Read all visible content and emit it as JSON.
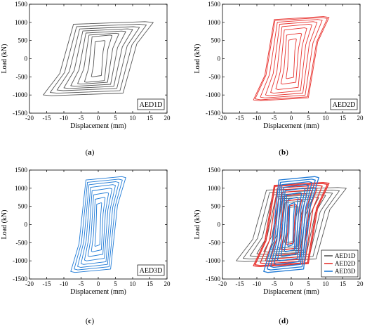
{
  "colors": {
    "AED1D": "#555555",
    "AED2D": "#e8332f",
    "AED3D": "#1f7ad6"
  },
  "captions": [
    "a",
    "b",
    "c",
    "d"
  ],
  "chart_data": [
    {
      "type": "line",
      "panel": "a",
      "xlabel": "Displacement (mm)",
      "ylabel": "Load (kN)",
      "xlim": [
        -20,
        20
      ],
      "ylim": [
        -1500,
        1500
      ],
      "xticks": [
        -20,
        -15,
        -10,
        -5,
        0,
        5,
        10,
        15,
        20
      ],
      "yticks": [
        -1500,
        -1000,
        -500,
        0,
        500,
        1000,
        1500
      ],
      "label_box": "AED1D",
      "label_position": "bottom-right",
      "series": [
        {
          "specimen": "AED1D",
          "loops": [
            [
              2,
              500
            ],
            [
              4,
              650
            ],
            [
              6,
              700
            ],
            [
              8,
              760
            ],
            [
              10,
              820
            ],
            [
              12,
              880
            ],
            [
              14,
              950
            ],
            [
              16,
              1020
            ]
          ]
        }
      ]
    },
    {
      "type": "line",
      "panel": "b",
      "xlabel": "Displacement (mm)",
      "ylabel": "Load (kN)",
      "xlim": [
        -20,
        20
      ],
      "ylim": [
        -1500,
        1500
      ],
      "xticks": [
        -20,
        -15,
        -10,
        -5,
        0,
        5,
        10,
        15,
        20
      ],
      "yticks": [
        -1500,
        -1000,
        -500,
        0,
        500,
        1000,
        1500
      ],
      "label_box": "AED2D",
      "label_position": "bottom-right",
      "series": [
        {
          "specimen": "AED2D",
          "loops": [
            [
              1.5,
              550
            ],
            [
              3,
              700
            ],
            [
              4.5,
              850
            ],
            [
              6,
              950
            ],
            [
              7.5,
              1020
            ],
            [
              9,
              1080
            ],
            [
              10.5,
              1130
            ],
            [
              11,
              1160
            ]
          ]
        }
      ]
    },
    {
      "type": "line",
      "panel": "c",
      "xlabel": "Displacement (mm)",
      "ylabel": "Load (kN)",
      "xlim": [
        -20,
        20
      ],
      "ylim": [
        -1500,
        1500
      ],
      "xticks": [
        -20,
        -15,
        -10,
        -5,
        0,
        5,
        10,
        15,
        20
      ],
      "yticks": [
        -1500,
        -1000,
        -500,
        0,
        500,
        1000,
        1500
      ],
      "label_box": "AED3D",
      "label_position": "bottom-right",
      "series": [
        {
          "specimen": "AED3D",
          "loops": [
            [
              1,
              600
            ],
            [
              2,
              750
            ],
            [
              3,
              880
            ],
            [
              4,
              1000
            ],
            [
              5,
              1100
            ],
            [
              6,
              1180
            ],
            [
              7,
              1250
            ],
            [
              8,
              1320
            ]
          ]
        }
      ]
    },
    {
      "type": "line",
      "panel": "d",
      "xlabel": "Displacement (mm)",
      "ylabel": "Load (kN)",
      "xlim": [
        -20,
        20
      ],
      "ylim": [
        -1500,
        1500
      ],
      "xticks": [
        -20,
        -15,
        -10,
        -5,
        0,
        5,
        10,
        15,
        20
      ],
      "yticks": [
        -1500,
        -1000,
        -500,
        0,
        500,
        1000,
        1500
      ],
      "legend": [
        "AED1D",
        "AED2D",
        "AED3D"
      ],
      "legend_position": "bottom-right",
      "series": [
        {
          "specimen": "AED1D",
          "name": "AED1D",
          "loops": [
            [
              2,
              500
            ],
            [
              4,
              650
            ],
            [
              6,
              700
            ],
            [
              8,
              760
            ],
            [
              10,
              820
            ],
            [
              12,
              880
            ],
            [
              14,
              950
            ],
            [
              16,
              1020
            ]
          ]
        },
        {
          "specimen": "AED2D",
          "name": "AED2D",
          "loops": [
            [
              1.5,
              550
            ],
            [
              3,
              700
            ],
            [
              4.5,
              850
            ],
            [
              6,
              950
            ],
            [
              7.5,
              1020
            ],
            [
              9,
              1080
            ],
            [
              10.5,
              1130
            ],
            [
              11,
              1160
            ]
          ]
        },
        {
          "specimen": "AED3D",
          "name": "AED3D",
          "loops": [
            [
              1,
              600
            ],
            [
              2,
              750
            ],
            [
              3,
              880
            ],
            [
              4,
              1000
            ],
            [
              5,
              1100
            ],
            [
              6,
              1180
            ],
            [
              7,
              1250
            ],
            [
              8,
              1320
            ]
          ]
        }
      ]
    }
  ]
}
